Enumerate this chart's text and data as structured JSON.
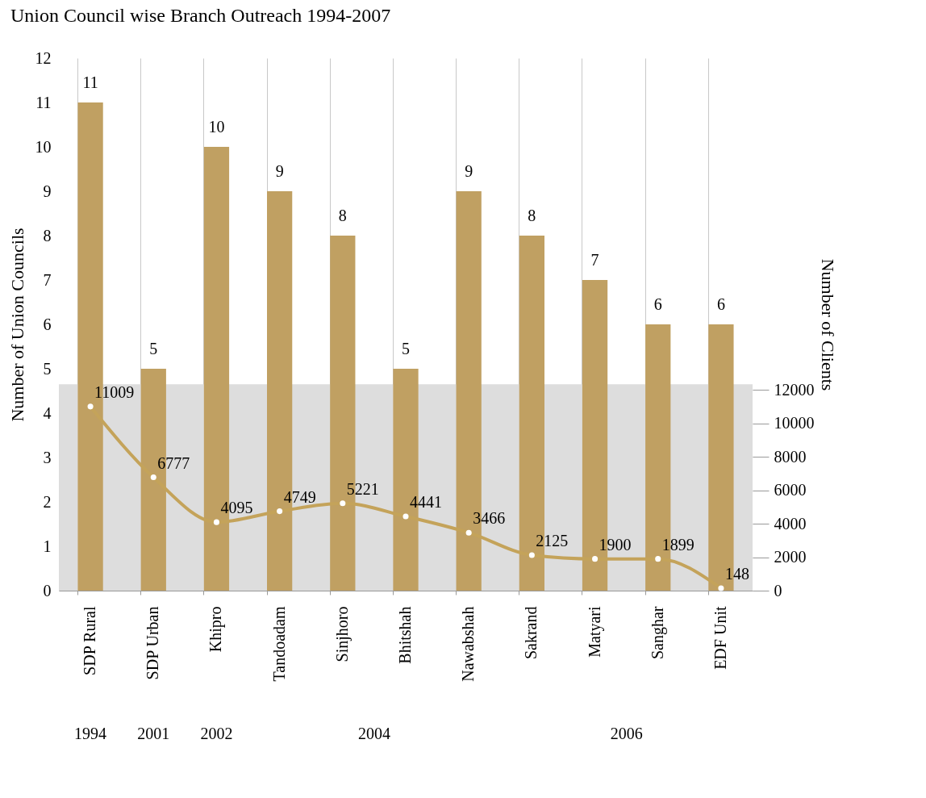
{
  "chart_data": {
    "type": "bar",
    "title": "Union Council wise Branch Outreach 1994-2007",
    "ylabel": "Number of Union Councils",
    "y2label": "Number of Clients",
    "categories": [
      "SDP Rural",
      "SDP Urban",
      "Khipro",
      "Tandoadam",
      "Sinjhoro",
      "Bhitshah",
      "Nawabshah",
      "Sakrand",
      "Matyari",
      "Sanghar",
      "EDF Unit"
    ],
    "series": [
      {
        "color": "#c0a062",
        "values": [
          11,
          5,
          10,
          9,
          8,
          5,
          9,
          8,
          7,
          6,
          6
        ]
      },
      {
        "type": "line",
        "axis": "y2",
        "color": "#c4a35a",
        "values": [
          11009,
          6777,
          4095,
          4749,
          5221,
          4441,
          3466,
          2125,
          1900,
          1899,
          148
        ]
      }
    ],
    "ylim": [
      0,
      12
    ],
    "yticks": [
      0,
      1,
      2,
      3,
      4,
      5,
      6,
      7,
      8,
      9,
      10,
      11,
      12
    ],
    "y2lim": [
      0,
      31850
    ],
    "y2ticks": [
      0,
      2000,
      4000,
      6000,
      8000,
      10000,
      12000
    ],
    "bands": [
      {
        "axis": "y",
        "from": 0,
        "to": 4.65,
        "color": "#dddddd"
      }
    ],
    "annotations": [
      "1994",
      "2001",
      "2002",
      "2004",
      "2006"
    ],
    "data_labels": true,
    "grid": true,
    "marker": "circle",
    "line_style": "solid",
    "legend": false
  }
}
